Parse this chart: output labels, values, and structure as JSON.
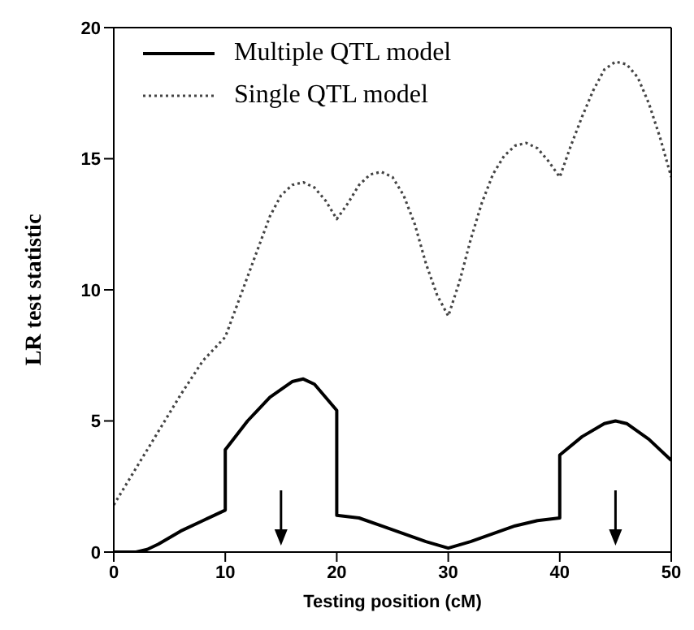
{
  "chart_data": {
    "type": "line",
    "xlabel": "Testing position (cM)",
    "ylabel": "LR test statistic",
    "xlim": [
      0,
      50
    ],
    "xticks": [
      0,
      10,
      20,
      30,
      40,
      50
    ],
    "ylim": [
      0,
      20
    ],
    "yticks": [
      0,
      5,
      10,
      15,
      20
    ],
    "grid": false,
    "legend": "top left",
    "marker": "none",
    "series": [
      {
        "name": "Multiple QTL model",
        "color": "#000000",
        "line_style": "solid",
        "x": [
          0,
          2,
          3,
          4,
          6,
          8,
          10,
          10,
          12,
          14,
          16,
          17,
          18,
          20,
          20,
          22,
          24,
          26,
          28,
          30,
          32,
          34,
          36,
          38,
          40,
          40,
          42,
          44,
          45,
          46,
          48,
          50
        ],
        "values": [
          0,
          0,
          0.1,
          0.3,
          0.8,
          1.2,
          1.6,
          3.9,
          5.0,
          5.9,
          6.5,
          6.6,
          6.4,
          5.4,
          1.4,
          1.3,
          1.0,
          0.7,
          0.4,
          0.15,
          0.4,
          0.7,
          1.0,
          1.2,
          1.3,
          3.7,
          4.4,
          4.9,
          5.0,
          4.9,
          4.3,
          3.5
        ]
      },
      {
        "name": "Single QTL model",
        "color": "#444444",
        "line_style": "dotted",
        "x": [
          0,
          2,
          4,
          6,
          8,
          10,
          12,
          14,
          15,
          16,
          17,
          18,
          19,
          20,
          21,
          22,
          23,
          24,
          25,
          26,
          27,
          28,
          29,
          30,
          31,
          32,
          33,
          34,
          35,
          36,
          37,
          38,
          39,
          40,
          41,
          42,
          43,
          44,
          45,
          46,
          47,
          48,
          49,
          50
        ],
        "values": [
          1.8,
          3.2,
          4.6,
          6.0,
          7.3,
          8.2,
          10.5,
          12.8,
          13.6,
          14.0,
          14.1,
          13.9,
          13.4,
          12.7,
          13.3,
          14.0,
          14.4,
          14.5,
          14.3,
          13.6,
          12.5,
          11.0,
          9.8,
          9.0,
          10.3,
          11.9,
          13.3,
          14.4,
          15.1,
          15.5,
          15.6,
          15.4,
          14.9,
          14.3,
          15.5,
          16.6,
          17.6,
          18.4,
          18.7,
          18.6,
          18.1,
          17.1,
          15.8,
          14.3
        ]
      }
    ],
    "ref_lines": [
      {
        "axis": "x",
        "value": 15
      },
      {
        "axis": "x",
        "value": 45
      }
    ]
  }
}
